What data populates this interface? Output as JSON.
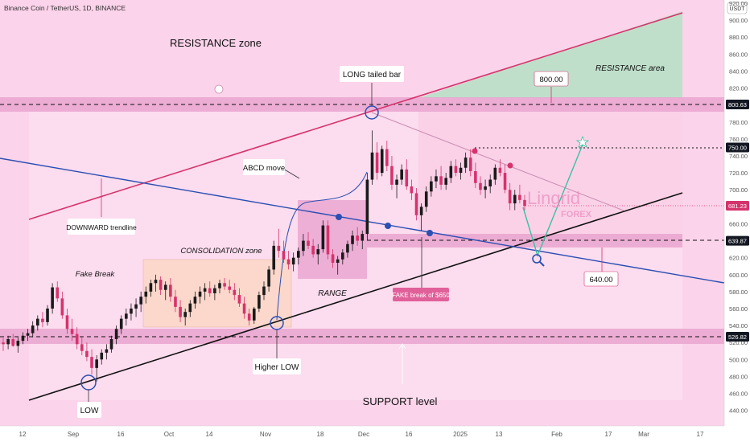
{
  "header": {
    "symbol_line": "Binance Coin / TetherUS, 1D, BINANCE",
    "currency": "USDT"
  },
  "colors": {
    "background": "#fbd3ea",
    "up_candle": "#1a1a1a",
    "down_candle": "#d6336c",
    "resistance_line": "#d6336c",
    "support_line": "#111111",
    "trendline": "#2b4fb3",
    "zone_fill": "#e9a4cf",
    "resistance_area": "#b8e0c8",
    "label_bg": "#ffffff",
    "fake_break_bg": "#e0609a"
  },
  "chart_data": {
    "type": "candlestick",
    "y_axis": {
      "ticks": [
        "440.00",
        "460.00",
        "480.00",
        "500.00",
        "520.00",
        "540.00",
        "560.00",
        "580.00",
        "600.00",
        "620.00",
        "660.00",
        "680.00",
        "700.00",
        "720.00",
        "740.00",
        "760.00",
        "780.00",
        "820.00",
        "840.00",
        "860.00",
        "880.00",
        "900.00",
        "920.00"
      ],
      "tick_values": [
        440,
        460,
        480,
        500,
        520,
        540,
        560,
        580,
        600,
        620,
        660,
        680,
        700,
        720,
        740,
        760,
        780,
        820,
        840,
        860,
        880,
        900,
        920
      ],
      "range": [
        430,
        935
      ]
    },
    "x_axis": {
      "labels": [
        "12",
        "Sep",
        "16",
        "Oct",
        "14",
        "Nov",
        "18",
        "Dec",
        "16",
        "2025",
        "13",
        "Feb",
        "17",
        "Mar",
        "17"
      ]
    },
    "price_badges": [
      {
        "value": 800.63,
        "text": "800.63",
        "style": "dark"
      },
      {
        "value": 750.0,
        "text": "750.00",
        "style": "dark"
      },
      {
        "value": 681.23,
        "text": "681.23",
        "style": "pink"
      },
      {
        "value": 639.87,
        "text": "639.87",
        "style": "dark"
      },
      {
        "value": 526.82,
        "text": "526.82",
        "style": "dark"
      }
    ],
    "annotations": {
      "resistance_zone": "RESISTANCE zone",
      "resistance_area": "RESISTANCE area",
      "long_tailed_bar": "LONG tailed bar",
      "abcd_move": "ABCD move",
      "downward_trendline": "DOWNWARD trendline",
      "consolidation_zone": "CONSOLIDATION zone",
      "fake_break": "Fake Break",
      "range": "RANGE",
      "fake_break_650": "FAKE break of $650",
      "higher_low": "Higher LOW",
      "low": "LOW",
      "support_level": "SUPPORT level",
      "level_800": "800.00",
      "level_640": "640.00"
    },
    "watermark": {
      "main": "Lingrid",
      "sub": "FOREX"
    },
    "candles": [
      [
        520,
        525,
        510,
        518
      ],
      [
        518,
        528,
        512,
        524
      ],
      [
        524,
        530,
        515,
        516
      ],
      [
        516,
        526,
        508,
        522
      ],
      [
        522,
        532,
        518,
        528
      ],
      [
        528,
        536,
        522,
        531
      ],
      [
        531,
        545,
        526,
        540
      ],
      [
        540,
        552,
        534,
        548
      ],
      [
        548,
        556,
        538,
        544
      ],
      [
        544,
        564,
        540,
        560
      ],
      [
        560,
        590,
        554,
        585
      ],
      [
        585,
        592,
        568,
        572
      ],
      [
        572,
        580,
        548,
        552
      ],
      [
        552,
        560,
        530,
        536
      ],
      [
        536,
        548,
        522,
        530
      ],
      [
        530,
        538,
        512,
        518
      ],
      [
        518,
        526,
        505,
        510
      ],
      [
        510,
        520,
        498,
        503
      ],
      [
        503,
        512,
        482,
        490
      ],
      [
        490,
        505,
        474,
        500
      ],
      [
        500,
        512,
        494,
        508
      ],
      [
        508,
        518,
        500,
        512
      ],
      [
        512,
        528,
        508,
        524
      ],
      [
        524,
        540,
        518,
        536
      ],
      [
        536,
        552,
        530,
        548
      ],
      [
        548,
        560,
        540,
        554
      ],
      [
        554,
        566,
        546,
        560
      ],
      [
        560,
        572,
        550,
        565
      ],
      [
        565,
        580,
        556,
        574
      ],
      [
        574,
        586,
        566,
        580
      ],
      [
        580,
        594,
        574,
        590
      ],
      [
        590,
        600,
        580,
        594
      ],
      [
        594,
        598,
        576,
        582
      ],
      [
        582,
        592,
        570,
        588
      ],
      [
        588,
        596,
        568,
        574
      ],
      [
        574,
        582,
        556,
        562
      ],
      [
        562,
        570,
        544,
        550
      ],
      [
        550,
        560,
        540,
        556
      ],
      [
        556,
        570,
        550,
        566
      ],
      [
        566,
        580,
        560,
        574
      ],
      [
        574,
        586,
        566,
        580
      ],
      [
        580,
        590,
        570,
        584
      ],
      [
        584,
        592,
        574,
        578
      ],
      [
        578,
        588,
        570,
        584
      ],
      [
        584,
        594,
        578,
        590
      ],
      [
        590,
        596,
        582,
        586
      ],
      [
        586,
        594,
        578,
        582
      ],
      [
        582,
        590,
        570,
        576
      ],
      [
        576,
        584,
        562,
        566
      ],
      [
        566,
        574,
        548,
        554
      ],
      [
        554,
        560,
        540,
        546
      ],
      [
        546,
        562,
        542,
        560
      ],
      [
        560,
        580,
        556,
        576
      ],
      [
        576,
        592,
        570,
        586
      ],
      [
        586,
        610,
        580,
        606
      ],
      [
        606,
        640,
        600,
        634
      ],
      [
        634,
        654,
        620,
        628
      ],
      [
        628,
        640,
        614,
        618
      ],
      [
        618,
        628,
        606,
        612
      ],
      [
        612,
        626,
        604,
        620
      ],
      [
        620,
        632,
        612,
        628
      ],
      [
        628,
        648,
        622,
        640
      ],
      [
        640,
        650,
        630,
        634
      ],
      [
        634,
        642,
        620,
        624
      ],
      [
        624,
        636,
        612,
        630
      ],
      [
        630,
        664,
        626,
        658
      ],
      [
        658,
        664,
        618,
        624
      ],
      [
        624,
        630,
        608,
        614
      ],
      [
        614,
        622,
        600,
        618
      ],
      [
        618,
        630,
        612,
        626
      ],
      [
        626,
        640,
        620,
        636
      ],
      [
        636,
        652,
        628,
        646
      ],
      [
        646,
        656,
        634,
        640
      ],
      [
        640,
        652,
        630,
        648
      ],
      [
        648,
        720,
        640,
        712
      ],
      [
        712,
        770,
        706,
        744
      ],
      [
        744,
        756,
        712,
        720
      ],
      [
        720,
        752,
        716,
        748
      ],
      [
        748,
        758,
        722,
        728
      ],
      [
        728,
        740,
        700,
        706
      ],
      [
        706,
        718,
        690,
        712
      ],
      [
        712,
        730,
        706,
        724
      ],
      [
        724,
        736,
        700,
        704
      ],
      [
        704,
        712,
        688,
        696
      ],
      [
        696,
        702,
        664,
        670
      ],
      [
        670,
        684,
        652,
        680
      ],
      [
        680,
        704,
        674,
        698
      ],
      [
        698,
        716,
        692,
        710
      ],
      [
        710,
        724,
        702,
        716
      ],
      [
        716,
        728,
        700,
        706
      ],
      [
        706,
        720,
        700,
        714
      ],
      [
        714,
        734,
        708,
        728
      ],
      [
        728,
        736,
        716,
        720
      ],
      [
        720,
        732,
        712,
        726
      ],
      [
        726,
        744,
        720,
        738
      ],
      [
        738,
        748,
        716,
        722
      ],
      [
        722,
        732,
        702,
        708
      ],
      [
        708,
        716,
        694,
        700
      ],
      [
        700,
        712,
        690,
        704
      ],
      [
        704,
        718,
        696,
        712
      ],
      [
        712,
        730,
        706,
        726
      ],
      [
        726,
        736,
        716,
        720
      ],
      [
        720,
        730,
        696,
        700
      ],
      [
        700,
        708,
        676,
        684
      ],
      [
        684,
        700,
        676,
        694
      ],
      [
        694,
        706,
        684,
        688
      ],
      [
        688,
        694,
        676,
        681
      ]
    ]
  }
}
